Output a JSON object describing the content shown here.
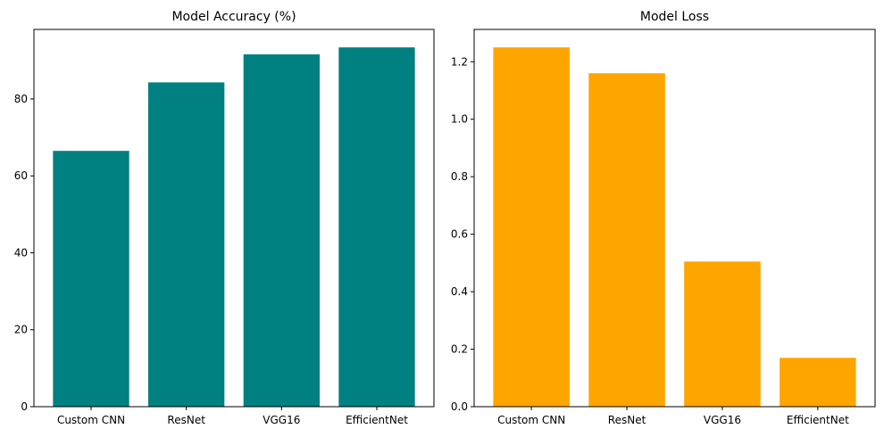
{
  "chart_data": [
    {
      "type": "bar",
      "title": "Model Accuracy (%)",
      "xlabel": "",
      "ylabel": "",
      "categories": [
        "Custom CNN",
        "ResNet",
        "VGG16",
        "EfficientNet"
      ],
      "values": [
        66.5,
        84.3,
        91.6,
        93.4
      ],
      "ylim": [
        0,
        98.07
      ],
      "yticks": [
        0,
        20,
        40,
        60,
        80
      ],
      "ytick_labels": [
        "0",
        "20",
        "40",
        "60",
        "80"
      ],
      "color": "#008080",
      "grid": false
    },
    {
      "type": "bar",
      "title": "Model Loss",
      "xlabel": "",
      "ylabel": "",
      "categories": [
        "Custom CNN",
        "ResNet",
        "VGG16",
        "EfficientNet"
      ],
      "values": [
        1.25,
        1.16,
        0.505,
        0.17
      ],
      "ylim": [
        0,
        1.3125
      ],
      "yticks": [
        0,
        0.2,
        0.4,
        0.6,
        0.8,
        1.0,
        1.2
      ],
      "ytick_labels": [
        "0.0",
        "0.2",
        "0.4",
        "0.6",
        "0.8",
        "1.0",
        "1.2"
      ],
      "color": "#FFA500",
      "grid": false
    }
  ]
}
